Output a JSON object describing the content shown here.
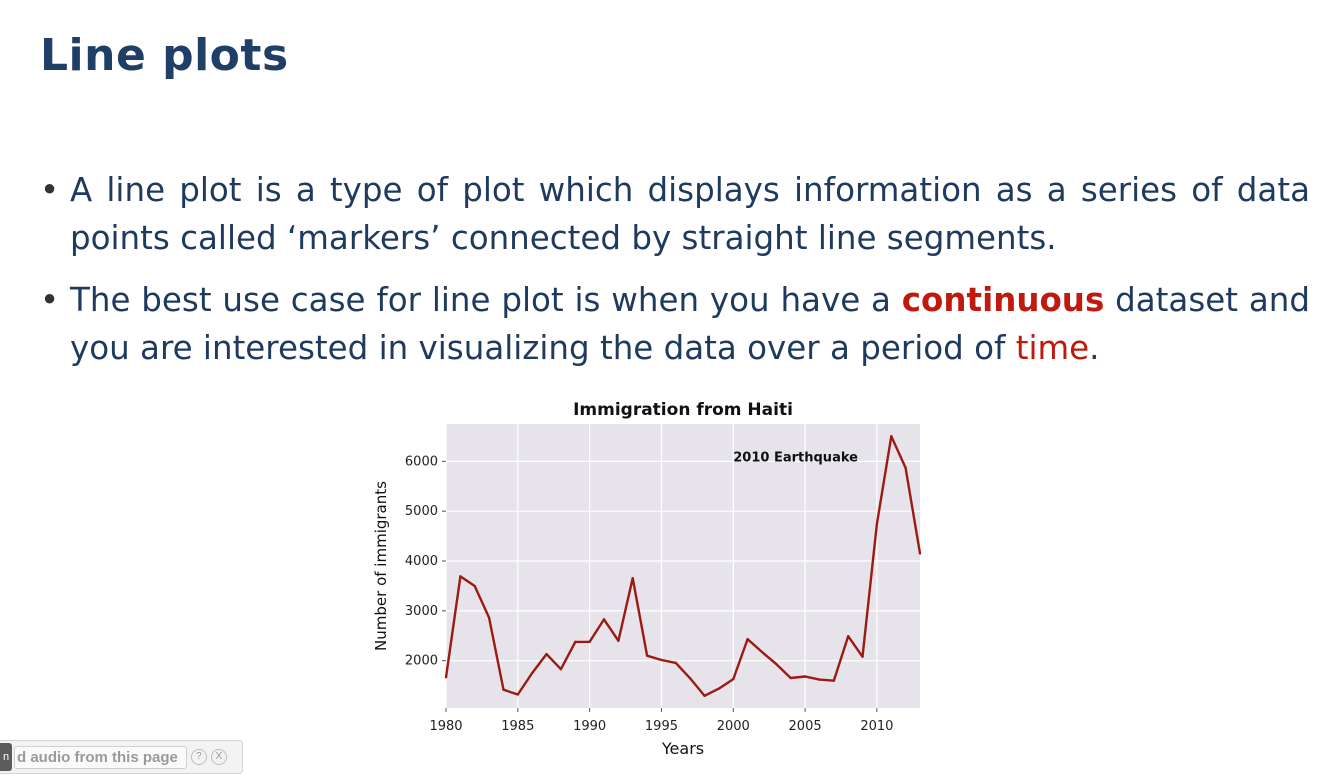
{
  "slide": {
    "title": "Line plots",
    "bullets": [
      {
        "text": "A line plot is a type of plot which displays information as a series of data points called ‘markers’ connected by straight line segments."
      },
      {
        "before": "The best use case for line plot is when you have a ",
        "highlight1": "continuous",
        "middle": " dataset and you are interested in visualizing the data over a period of ",
        "highlight2": "time",
        "after": "."
      }
    ],
    "highlight_color": "#c0190e"
  },
  "chart_data": {
    "type": "line",
    "title": "Immigration from Haiti",
    "xlabel": "Years",
    "ylabel": "Number of immigrants",
    "x": [
      1980,
      1981,
      1982,
      1983,
      1984,
      1985,
      1986,
      1987,
      1988,
      1989,
      1990,
      1991,
      1992,
      1993,
      1994,
      1995,
      1996,
      1997,
      1998,
      1999,
      2000,
      2001,
      2002,
      2003,
      2004,
      2005,
      2006,
      2007,
      2008,
      2009,
      2010,
      2011,
      2012,
      2013
    ],
    "series": [
      {
        "values": [
          1666,
          3692,
          3498,
          2860,
          1418,
          1321,
          1753,
          2132,
          1829,
          2377,
          2379,
          2829,
          2399,
          3655,
          2100,
          2014,
          1955,
          1645,
          1295,
          1439,
          1631,
          2433,
          2174,
          1930,
          1652,
          1682,
          1619,
          1598,
          2491,
          2080,
          4744,
          6503,
          5868,
          4152
        ],
        "color": "#9b1b14"
      }
    ],
    "xlim": [
      1980,
      2013
    ],
    "ylim": [
      1050,
      6750
    ],
    "xticks": [
      "1980",
      "1985",
      "1990",
      "1995",
      "2000",
      "2005",
      "2010"
    ],
    "yticks": [
      "2000",
      "3000",
      "4000",
      "5000",
      "6000"
    ],
    "annotation": {
      "text": "2010 Earthquake",
      "x": 2000,
      "y": 6000
    },
    "grid": true,
    "plot_background": "#e6e4ea"
  },
  "audio_bar": {
    "icon_text": "n",
    "label": "d audio from this page",
    "help": "?",
    "close": "X"
  }
}
